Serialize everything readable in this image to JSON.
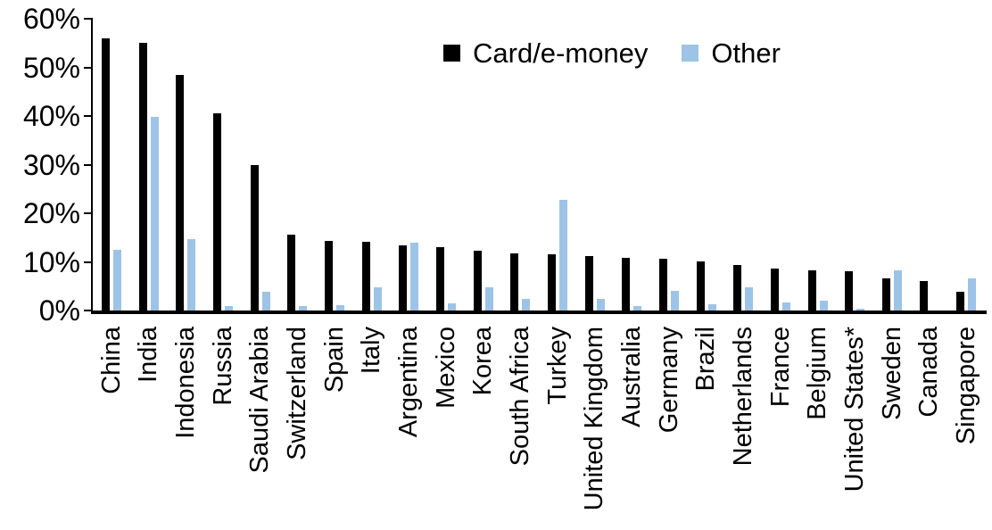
{
  "legend": {
    "items": [
      {
        "label": "Card/e-money",
        "color": "#000000"
      },
      {
        "label": "Other",
        "color": "#9DC3E6"
      }
    ]
  },
  "axis": {
    "y_tick_labels": [
      "60%",
      "50%",
      "40%",
      "30%",
      "20%",
      "10%",
      "0%"
    ],
    "axis_color": "#000000"
  },
  "chart_data": {
    "type": "bar",
    "title": "",
    "xlabel": "",
    "ylabel": "",
    "ylim": [
      0,
      60
    ],
    "ytick_values": [
      0,
      10,
      20,
      30,
      40,
      50,
      60
    ],
    "ytick_labels": [
      "0%",
      "10%",
      "20%",
      "30%",
      "40%",
      "50%",
      "60%"
    ],
    "grid": false,
    "legend_position": "top-center",
    "categories": [
      "China",
      "India",
      "Indonesia",
      "Russia",
      "Saudi Arabia",
      "Switzerland",
      "Spain",
      "Italy",
      "Argentina",
      "Mexico",
      "Korea",
      "South Africa",
      "Turkey",
      "United Kingdom",
      "Australia",
      "Germany",
      "Brazil",
      "Netherlands",
      "France",
      "Belgium",
      "United States*",
      "Sweden",
      "Canada",
      "Singapore"
    ],
    "series": [
      {
        "name": "Card/e-money",
        "color": "#000000",
        "values": [
          56,
          55,
          48.5,
          40.5,
          30,
          15.6,
          14.3,
          14.1,
          13.4,
          13,
          12.3,
          11.7,
          11.6,
          11.2,
          10.9,
          10.7,
          10.1,
          9.4,
          8.7,
          8.2,
          8,
          6.6,
          6.1,
          3.9
        ]
      },
      {
        "name": "Other",
        "color": "#9DC3E6",
        "values": [
          12.4,
          39.8,
          14.6,
          1,
          3.9,
          0.9,
          1.1,
          4.7,
          14,
          1.4,
          4.7,
          2.4,
          22.7,
          2.4,
          1,
          4.1,
          1.2,
          4.8,
          1.6,
          2.1,
          0.3,
          8.2,
          0,
          6.7
        ]
      }
    ]
  }
}
